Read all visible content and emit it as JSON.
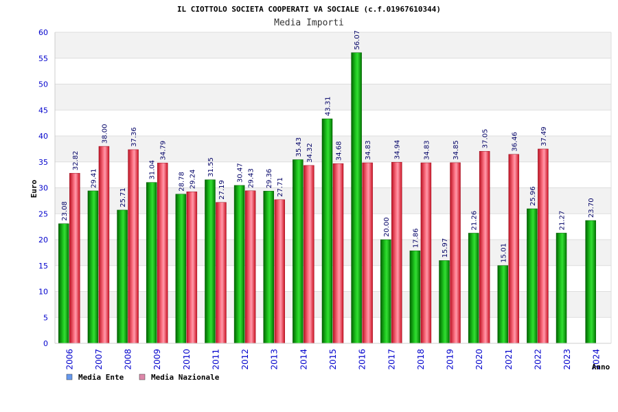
{
  "chart_data": {
    "type": "bar",
    "title": "IL CIOTTOLO SOCIETA COOPERATI VA SOCIALE (c.f.01967610344)",
    "subtitle": "Media Importi",
    "xlabel": "Anno",
    "ylabel": "Euro",
    "ylim": [
      0,
      60
    ],
    "yticks": [
      0,
      5,
      10,
      15,
      20,
      25,
      30,
      35,
      40,
      45,
      50,
      55,
      60
    ],
    "grid": true,
    "legend_position": "bottom-left",
    "categories": [
      "2006",
      "2007",
      "2008",
      "2009",
      "2010",
      "2011",
      "2012",
      "2013",
      "2014",
      "2015",
      "2016",
      "2017",
      "2018",
      "2019",
      "2020",
      "2021",
      "2022",
      "2023",
      "2024"
    ],
    "series": [
      {
        "name": "Media Ente",
        "legend_color": "#6699ee",
        "bar_color": "#11aa11",
        "values": [
          23.08,
          29.41,
          25.71,
          31.04,
          28.78,
          31.55,
          30.47,
          29.36,
          35.43,
          43.31,
          56.07,
          20.0,
          17.86,
          15.97,
          21.26,
          15.01,
          25.96,
          21.27,
          23.7
        ],
        "labels": [
          "23.08",
          "29.41",
          "25.71",
          "31.04",
          "28.78",
          "31.55",
          "30.47",
          "29.36",
          "35.43",
          "43.31",
          "56.07",
          "20.00",
          "17.86",
          "15.97",
          "21.26",
          "15.01",
          "25.96",
          "21.27",
          "23.70"
        ]
      },
      {
        "name": "Media Nazionale",
        "legend_color": "#dd88aa",
        "bar_color": "#ee2233",
        "values": [
          32.82,
          38.0,
          37.36,
          34.79,
          29.24,
          27.19,
          29.43,
          27.71,
          34.32,
          34.68,
          34.83,
          34.94,
          34.83,
          34.85,
          37.05,
          36.46,
          37.49,
          null,
          null
        ],
        "labels": [
          "32.82",
          "38.00",
          "37.36",
          "34.79",
          "29.24",
          "27.19",
          "29.43",
          "27.71",
          "34.32",
          "34.68",
          "34.83",
          "34.94",
          "34.83",
          "34.85",
          "37.05",
          "36.46",
          "37.49",
          "",
          ""
        ]
      }
    ]
  }
}
